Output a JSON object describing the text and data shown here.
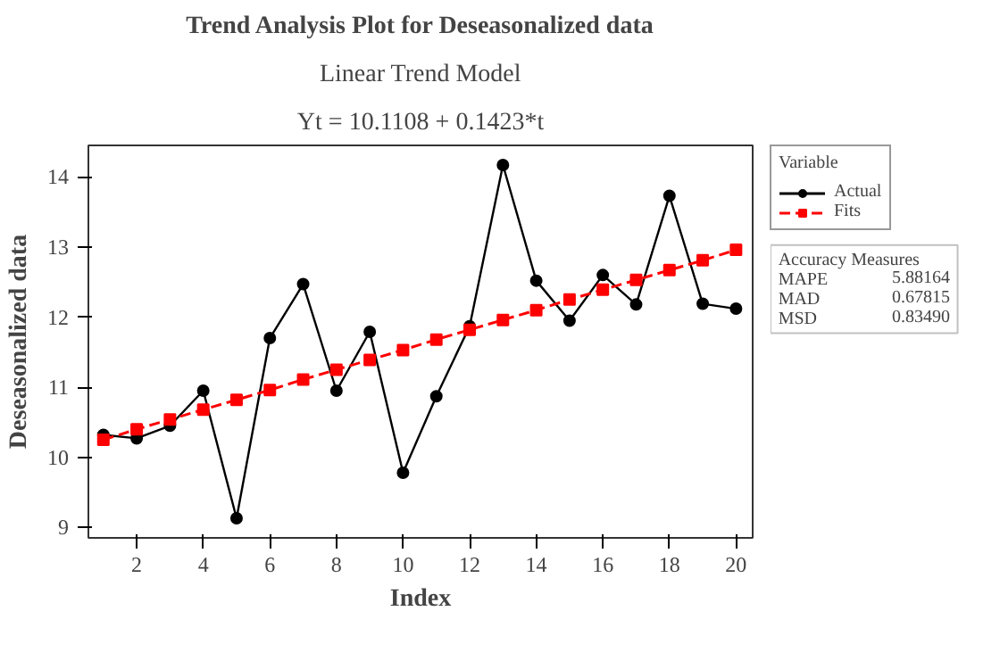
{
  "chart_data": {
    "type": "line",
    "title": "Trend Analysis Plot for Deseasonalized data",
    "subtitle": "Linear Trend Model",
    "xlabel": "Index",
    "ylabel": "Deseasonalized data",
    "legend_title": "Variable",
    "legend": "top right",
    "x": [
      1,
      2,
      3,
      4,
      5,
      6,
      7,
      8,
      9,
      10,
      11,
      12,
      13,
      14,
      15,
      16,
      17,
      18,
      19,
      20
    ],
    "series": [
      {
        "name": "Actual",
        "color": "#000000",
        "marker": "circle",
        "line_style": "solid",
        "values": [
          10.32,
          10.27,
          10.45,
          10.95,
          9.13,
          11.7,
          12.47,
          10.95,
          11.79,
          9.78,
          10.87,
          11.87,
          14.17,
          12.52,
          11.95,
          12.6,
          12.18,
          13.73,
          12.19,
          12.12
        ]
      },
      {
        "name": "Fits",
        "color": "#ff0000",
        "marker": "square",
        "line_style": "dashed",
        "values": [
          10.25,
          10.4,
          10.54,
          10.68,
          10.82,
          10.96,
          11.11,
          11.25,
          11.39,
          11.53,
          11.68,
          11.82,
          11.96,
          12.1,
          12.25,
          12.39,
          12.53,
          12.67,
          12.81,
          12.96
        ]
      }
    ],
    "xlim": [
      0.55,
      20.5
    ],
    "ylim": [
      8.85,
      14.45
    ],
    "xticks": [
      2,
      4,
      6,
      8,
      10,
      12,
      14,
      16,
      18,
      20
    ],
    "yticks": [
      9,
      10,
      11,
      12,
      13,
      14
    ],
    "grid": false,
    "annotations": [
      "Yt = 10.1108 + 0.1423*t",
      "Accuracy Measures",
      "MAPE",
      "5.88164",
      "MAD",
      "0.67815",
      "MSD",
      "0.83490"
    ]
  }
}
